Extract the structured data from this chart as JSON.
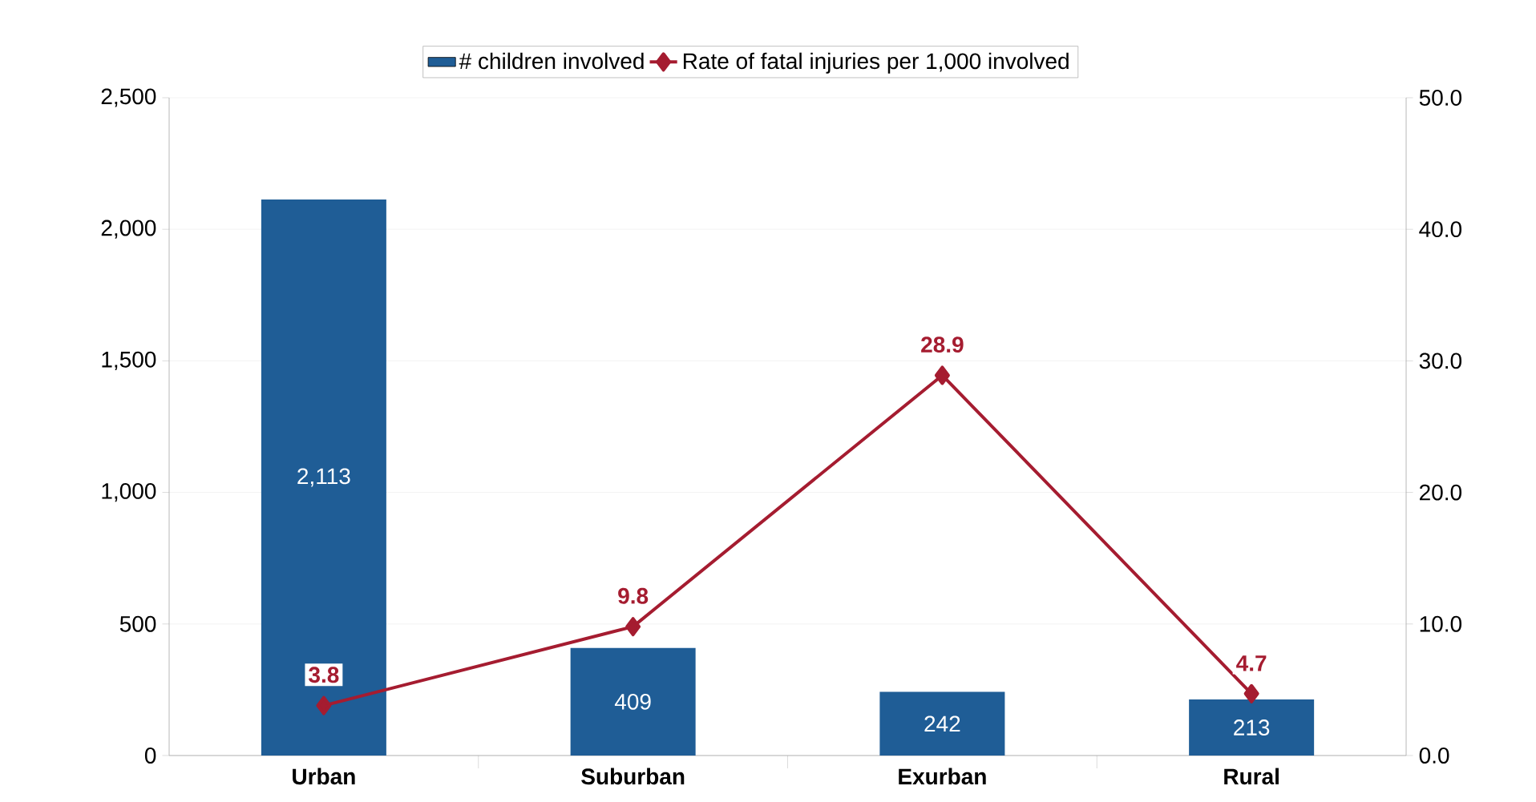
{
  "chart_data": {
    "type": "bar",
    "categories": [
      "Urban",
      "Suburban",
      "Exurban",
      "Rural"
    ],
    "series": [
      {
        "name": "# children involved",
        "color": "#1f5d96",
        "values": [
          2113,
          409,
          242,
          213
        ],
        "value_labels": [
          "2,113",
          "409",
          "242",
          "213"
        ]
      },
      {
        "name": "Rate of fatal injuries per 1,000 involved",
        "type": "line",
        "axis": "y2",
        "color": "#a51c30",
        "marker": "diamond",
        "line_style": "solid",
        "values": [
          3.8,
          9.8,
          28.9,
          4.7
        ],
        "value_labels": [
          "3.8",
          "9.8",
          "28.9",
          "4.7"
        ]
      }
    ],
    "ylim": [
      0,
      2500
    ],
    "yticks": [
      {
        "value": 0,
        "label": "0"
      },
      {
        "value": 500,
        "label": "500"
      },
      {
        "value": 1000,
        "label": "1,000"
      },
      {
        "value": 1500,
        "label": "1,500"
      },
      {
        "value": 2000,
        "label": "2,000"
      },
      {
        "value": 2500,
        "label": "2,500"
      }
    ],
    "y2lim": [
      0,
      50
    ],
    "y2ticks": [
      {
        "value": 0,
        "label": "0.0"
      },
      {
        "value": 10,
        "label": "10.0"
      },
      {
        "value": 20,
        "label": "20.0"
      },
      {
        "value": 30,
        "label": "30.0"
      },
      {
        "value": 40,
        "label": "40.0"
      },
      {
        "value": 50,
        "label": "50.0"
      }
    ],
    "grid": "y",
    "legend": "top"
  }
}
